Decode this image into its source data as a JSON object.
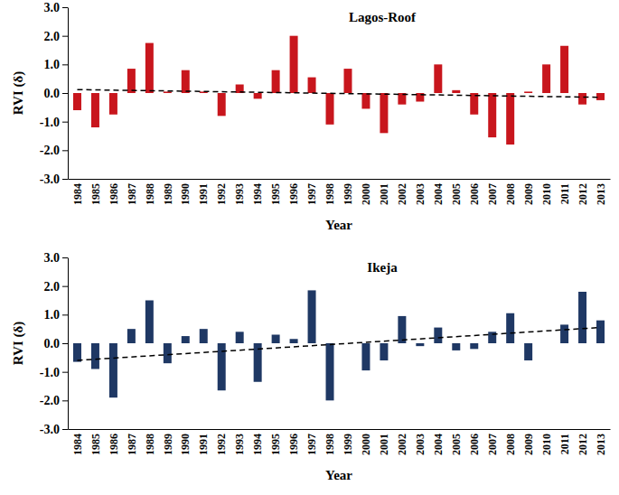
{
  "chart_data": [
    {
      "type": "bar",
      "title": "Lagos-Roof",
      "x_label": "Year",
      "y_label": "RVI (δ)",
      "categories": [
        "1984",
        "1985",
        "1986",
        "1987",
        "1988",
        "1989",
        "1990",
        "1991",
        "1992",
        "1993",
        "1994",
        "1995",
        "1996",
        "1997",
        "1998",
        "1999",
        "2000",
        "2001",
        "2002",
        "2003",
        "2004",
        "2005",
        "2006",
        "2007",
        "2008",
        "2009",
        "2010",
        "2011",
        "2012",
        "2013"
      ],
      "values": [
        -0.6,
        -1.2,
        -0.75,
        0.85,
        1.75,
        0.05,
        0.8,
        0.05,
        -0.8,
        0.3,
        -0.2,
        0.8,
        2.0,
        0.55,
        -1.1,
        0.85,
        -0.55,
        -1.4,
        -0.4,
        -0.3,
        1.0,
        0.1,
        -0.75,
        -1.55,
        -1.8,
        0.05,
        1.0,
        1.65,
        -0.4,
        -0.25
      ],
      "color": "#c8161d",
      "trend_line": [
        0.12,
        -0.15
      ],
      "line_style": "dashed",
      "ylim": [
        -3,
        3
      ],
      "yticks": [
        {
          "value": -3,
          "label": "-3.0"
        },
        {
          "value": -2,
          "label": "-2.0"
        },
        {
          "value": -1,
          "label": "-1.0"
        },
        {
          "value": 0,
          "label": "0.0"
        },
        {
          "value": 1,
          "label": "1.0"
        },
        {
          "value": 2,
          "label": "2.0"
        },
        {
          "value": 3,
          "label": "3.0"
        }
      ],
      "grid": false
    },
    {
      "type": "bar",
      "title": "Ikeja",
      "x_label": "Year",
      "y_label": "RVI (δ)",
      "categories": [
        "1984",
        "1985",
        "1986",
        "1987",
        "1988",
        "1989",
        "1990",
        "1991",
        "1992",
        "1993",
        "1994",
        "1995",
        "1996",
        "1997",
        "1998",
        "1999",
        "2000",
        "2001",
        "2002",
        "2003",
        "2004",
        "2005",
        "2006",
        "2007",
        "2008",
        "2009",
        "2010",
        "2011",
        "2012",
        "2013"
      ],
      "values": [
        -0.65,
        -0.9,
        -1.9,
        0.5,
        1.5,
        -0.7,
        0.25,
        0.5,
        -1.65,
        0.4,
        -1.35,
        0.3,
        0.15,
        1.85,
        -2.0,
        null,
        -0.95,
        -0.6,
        0.95,
        -0.1,
        0.55,
        -0.25,
        -0.2,
        0.4,
        1.05,
        -0.6,
        null,
        0.65,
        1.8,
        0.8
      ],
      "color": "#1f3864",
      "trend_line": [
        -0.6,
        0.55
      ],
      "line_style": "dashed",
      "ylim": [
        -3,
        3
      ],
      "yticks": [
        {
          "value": -3,
          "label": "-3.0"
        },
        {
          "value": -2,
          "label": "-2.0"
        },
        {
          "value": -1,
          "label": "-1.0"
        },
        {
          "value": 0,
          "label": "0.0"
        },
        {
          "value": 1,
          "label": "1.0"
        },
        {
          "value": 2,
          "label": "2.0"
        },
        {
          "value": 3,
          "label": "3.0"
        }
      ],
      "grid": false
    }
  ]
}
